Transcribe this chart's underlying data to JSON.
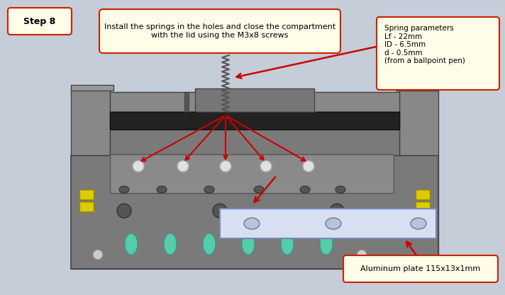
{
  "background_color": "#c5cdd8",
  "fig_width": 7.12,
  "fig_height": 4.17,
  "step_label": "Step 8",
  "instruction_text": "Install the springs in the holes and close the compartment\nwith the lid using the M3x8 screws",
  "spring_params_text": "Spring parameters\nLf - 22mm\nID - 6.5mm\nd - 0.5mm\n(from a ballpoint pen)",
  "alum_plate_text": "Aluminum plate 115x13x1mm",
  "arrow_color": "#cc0000",
  "box_fill": "#fffce8",
  "box_edge": "#cc2200",
  "body_color": "#7a7a7a",
  "body_dark": "#444444",
  "body_light": "#909090",
  "rail_color": "#222222",
  "pillar_color": "#888888",
  "alum_plate_color": "#d8dff0",
  "screw_color": "#e0e0e0",
  "yellow_color": "#ddcc00",
  "teal_color": "#55ccaa",
  "spring_color": "#555555"
}
